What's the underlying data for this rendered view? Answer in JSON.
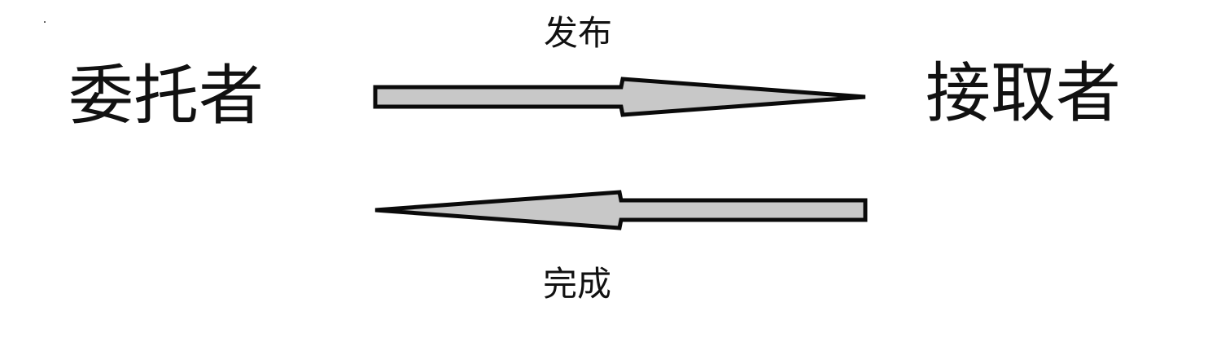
{
  "nodes": {
    "left": "委托者",
    "right": "接取者"
  },
  "edges": {
    "top_label": "发布",
    "bottom_label": "完成"
  },
  "colors": {
    "arrow_fill": "#c8c8c8",
    "arrow_stroke": "#0a0a0a",
    "text": "#111111",
    "background": "#ffffff"
  }
}
